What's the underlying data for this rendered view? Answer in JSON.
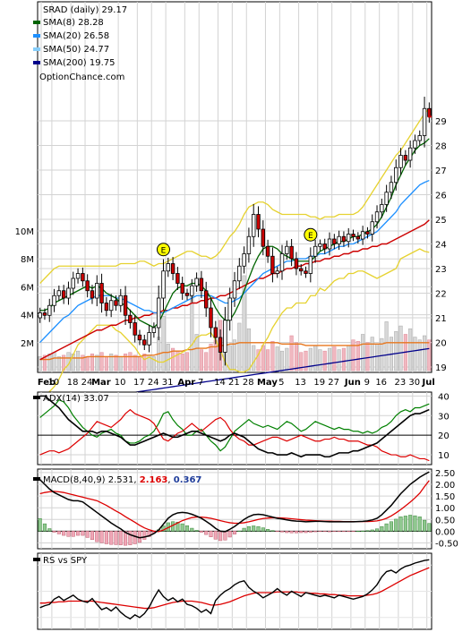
{
  "chart_data": {
    "type": "stock-chart",
    "symbol": "SRAD",
    "period": "daily",
    "title": "SRAD (daily) 29.17",
    "watermark": "OptionChance.com",
    "date_labels": [
      "Feb",
      "10",
      "18",
      "24",
      "Mar",
      "10",
      "17",
      "24",
      "31",
      "Apr",
      "7",
      "14",
      "21",
      "28",
      "May",
      "5",
      "13",
      "19",
      "27",
      "Jun",
      "9",
      "16",
      "23",
      "30",
      "Jul"
    ],
    "price_axis": {
      "min": 18,
      "max": 30,
      "ticks": [
        19,
        20,
        21,
        22,
        23,
        24,
        25,
        26,
        27,
        28,
        29
      ]
    },
    "volume_axis": {
      "min": 0,
      "max": 11,
      "unit": "M",
      "tick_labels": [
        "2M",
        "4M",
        "6M",
        "8M",
        "10M"
      ],
      "ticks": [
        2,
        4,
        6,
        8,
        10
      ]
    },
    "legend": [
      {
        "label": "SMA(8)",
        "value": "28.28",
        "color": "#006400"
      },
      {
        "label": "SMA(20)",
        "value": "26.58",
        "color": "#1e90ff"
      },
      {
        "label": "SMA(50)",
        "value": "24.77",
        "color": "#87cefa"
      },
      {
        "label": "SMA(200)",
        "value": "19.75",
        "color": "#00008b"
      }
    ],
    "earnings_markers": [
      {
        "label": "E",
        "index": 26
      },
      {
        "label": "E",
        "index": 57
      }
    ],
    "close": [
      21.2,
      21.1,
      21.5,
      21.9,
      22.1,
      21.8,
      22.2,
      22.6,
      22.8,
      22.5,
      22.1,
      21.8,
      22.4,
      21.6,
      21.3,
      21.7,
      21.5,
      21.9,
      21.1,
      20.8,
      20.3,
      20.1,
      19.9,
      20.4,
      20.6,
      21.8,
      22.9,
      23.2,
      22.8,
      22.4,
      22.0,
      21.9,
      22.3,
      22.6,
      22.1,
      21.4,
      20.6,
      20.2,
      19.6,
      20.9,
      21.8,
      22.5,
      23.1,
      23.6,
      24.3,
      25.2,
      24.6,
      23.9,
      23.5,
      22.8,
      22.9,
      23.6,
      23.9,
      23.4,
      23.0,
      22.9,
      22.8,
      23.5,
      23.9,
      24.0,
      23.8,
      24.2,
      24.0,
      24.3,
      24.1,
      24.4,
      24.3,
      24.2,
      24.5,
      24.4,
      24.9,
      25.3,
      25.6,
      26.1,
      26.5,
      27.1,
      27.6,
      27.4,
      27.9,
      28.2,
      28.4,
      29.5,
      29.17
    ],
    "sma8": [
      21.3,
      21.3,
      21.4,
      21.6,
      21.7,
      21.8,
      21.9,
      22.0,
      22.1,
      22.2,
      22.3,
      22.2,
      22.3,
      22.2,
      22.0,
      21.9,
      21.8,
      21.6,
      21.5,
      21.3,
      21.1,
      20.9,
      20.8,
      20.7,
      20.6,
      20.8,
      21.2,
      21.6,
      22.0,
      22.2,
      22.3,
      22.3,
      22.4,
      22.4,
      22.3,
      22.1,
      21.8,
      21.4,
      21.1,
      20.9,
      20.9,
      21.2,
      21.6,
      22.1,
      22.6,
      23.1,
      23.5,
      23.8,
      23.9,
      23.9,
      23.8,
      23.6,
      23.5,
      23.4,
      23.3,
      23.3,
      23.3,
      23.3,
      23.5,
      23.7,
      23.8,
      23.9,
      24.0,
      24.1,
      24.1,
      24.2,
      24.3,
      24.3,
      24.4,
      24.5,
      24.6,
      24.8,
      25.1,
      25.5,
      25.9,
      26.4,
      26.8,
      27.2,
      27.5,
      27.8,
      28.0,
      28.1,
      28.28
    ],
    "sma20": [
      20.0,
      20.2,
      20.4,
      20.6,
      20.8,
      21.0,
      21.1,
      21.3,
      21.5,
      21.6,
      21.7,
      21.8,
      21.9,
      21.9,
      21.9,
      21.9,
      21.8,
      21.8,
      21.7,
      21.6,
      21.5,
      21.4,
      21.3,
      21.3,
      21.2,
      21.2,
      21.2,
      21.3,
      21.4,
      21.5,
      21.6,
      21.7,
      21.8,
      21.9,
      21.9,
      21.9,
      21.9,
      21.8,
      21.7,
      21.6,
      21.6,
      21.7,
      21.8,
      22.0,
      22.2,
      22.4,
      22.6,
      22.8,
      22.9,
      23.0,
      23.1,
      23.2,
      23.3,
      23.3,
      23.4,
      23.4,
      23.4,
      23.5,
      23.5,
      23.6,
      23.6,
      23.7,
      23.8,
      23.9,
      23.9,
      24.0,
      24.0,
      24.1,
      24.2,
      24.3,
      24.4,
      24.5,
      24.7,
      24.9,
      25.1,
      25.3,
      25.6,
      25.8,
      26.0,
      26.2,
      26.4,
      26.5,
      26.58
    ],
    "sma50": [
      19.1,
      19.2,
      19.3,
      19.4,
      19.5,
      19.6,
      19.7,
      19.8,
      19.9,
      20.0,
      20.1,
      20.2,
      20.3,
      20.3,
      20.4,
      20.5,
      20.5,
      20.6,
      20.7,
      20.7,
      20.8,
      20.8,
      20.9,
      20.9,
      21.0,
      21.0,
      21.1,
      21.1,
      21.2,
      21.2,
      21.3,
      21.3,
      21.4,
      21.4,
      21.5,
      21.5,
      21.6,
      21.6,
      21.7,
      21.7,
      21.8,
      21.9,
      22.0,
      22.1,
      22.2,
      22.3,
      22.4,
      22.4,
      22.5,
      22.6,
      22.6,
      22.7,
      22.8,
      22.8,
      22.9,
      22.9,
      23.0,
      23.0,
      23.1,
      23.1,
      23.2,
      23.2,
      23.3,
      23.3,
      23.4,
      23.4,
      23.5,
      23.5,
      23.6,
      23.6,
      23.7,
      23.7,
      23.8,
      23.8,
      23.9,
      24.0,
      24.1,
      24.2,
      24.3,
      24.4,
      24.5,
      24.6,
      24.77
    ],
    "bb_upper": [
      22.4,
      22.6,
      22.8,
      23.0,
      23.1,
      23.1,
      23.1,
      23.1,
      23.1,
      23.1,
      23.1,
      23.1,
      23.1,
      23.1,
      23.1,
      23.1,
      23.1,
      23.2,
      23.2,
      23.2,
      23.2,
      23.3,
      23.3,
      23.2,
      23.1,
      23.2,
      23.2,
      23.3,
      23.4,
      23.5,
      23.6,
      23.7,
      23.7,
      23.6,
      23.5,
      23.5,
      23.4,
      23.5,
      23.7,
      24.0,
      24.3,
      24.5,
      24.8,
      25.2,
      25.5,
      25.6,
      25.7,
      25.7,
      25.6,
      25.4,
      25.3,
      25.2,
      25.2,
      25.2,
      25.2,
      25.2,
      25.2,
      25.1,
      25.1,
      25.0,
      25.1,
      25.1,
      25.1,
      25.2,
      25.2,
      25.2,
      25.2,
      25.3,
      25.5,
      25.8,
      26.1,
      26.4,
      26.7,
      27.0,
      27.3,
      27.6,
      27.8,
      28.1,
      28.4,
      28.7,
      29.0,
      29.3,
      29.5
    ],
    "bb_lower": [
      17.6,
      17.8,
      18.0,
      18.2,
      18.5,
      18.9,
      19.1,
      19.5,
      19.9,
      20.1,
      20.3,
      20.5,
      20.7,
      20.7,
      20.7,
      20.7,
      20.5,
      20.4,
      20.2,
      20.0,
      19.8,
      19.5,
      19.3,
      19.4,
      19.3,
      19.2,
      19.2,
      19.3,
      19.4,
      19.5,
      19.6,
      19.7,
      19.9,
      20.2,
      20.3,
      20.3,
      20.4,
      20.1,
      19.7,
      19.2,
      18.9,
      18.9,
      18.8,
      18.8,
      18.9,
      19.2,
      19.5,
      19.9,
      20.2,
      20.6,
      20.9,
      21.2,
      21.4,
      21.4,
      21.6,
      21.6,
      21.6,
      21.9,
      21.9,
      22.2,
      22.1,
      22.3,
      22.5,
      22.6,
      22.6,
      22.8,
      22.8,
      22.9,
      22.9,
      22.8,
      22.7,
      22.6,
      22.7,
      22.8,
      22.9,
      23.0,
      23.4,
      23.5,
      23.6,
      23.7,
      23.8,
      23.7,
      23.66
    ],
    "sma200_start": 17.4,
    "sma200_end": 19.75,
    "volume": [
      1.0,
      1.1,
      1.2,
      1.3,
      1.0,
      1.1,
      1.3,
      1.2,
      1.4,
      1.1,
      1.0,
      1.2,
      1.1,
      1.3,
      1.0,
      1.2,
      1.1,
      1.0,
      1.2,
      1.3,
      1.1,
      1.0,
      1.2,
      1.1,
      1.0,
      2.4,
      3.9,
      1.9,
      1.6,
      1.4,
      1.2,
      1.3,
      5.8,
      2.6,
      1.5,
      1.3,
      1.9,
      2.2,
      3.6,
      3.1,
      1.8,
      2.2,
      3.4,
      6.8,
      3.0,
      1.8,
      1.5,
      1.8,
      1.5,
      2.1,
      1.7,
      1.4,
      1.6,
      2.5,
      2.0,
      1.3,
      1.4,
      1.6,
      1.8,
      1.5,
      1.4,
      1.6,
      1.7,
      1.5,
      1.6,
      1.8,
      2.2,
      2.1,
      2.6,
      2.0,
      2.4,
      1.9,
      2.3,
      3.5,
      2.4,
      2.8,
      3.2,
      2.6,
      3.0,
      2.4,
      2.2,
      2.5,
      2.2
    ],
    "volume_ma": [
      0.8,
      0.8,
      0.8,
      0.9,
      0.9,
      0.9,
      0.9,
      0.9,
      0.9,
      0.9,
      1.0,
      1.0,
      1.0,
      1.0,
      1.0,
      1.0,
      1.0,
      1.0,
      1.0,
      1.0,
      1.0,
      1.0,
      1.1,
      1.1,
      1.1,
      1.2,
      1.3,
      1.3,
      1.4,
      1.4,
      1.4,
      1.5,
      1.5,
      1.6,
      1.6,
      1.6,
      1.7,
      1.7,
      1.8,
      1.8,
      1.9,
      1.9,
      2.0,
      2.0,
      2.0,
      2.0,
      2.0,
      2.0,
      2.0,
      2.0,
      2.0,
      1.9,
      1.9,
      1.9,
      1.9,
      1.9,
      1.8,
      1.8,
      1.8,
      1.8,
      1.8,
      1.8,
      1.8,
      1.8,
      1.8,
      1.8,
      1.8,
      1.8,
      1.9,
      1.9,
      1.9,
      1.9,
      1.9,
      2.0,
      2.0,
      2.0,
      2.0,
      2.0,
      2.0,
      2.0,
      2.0,
      2.0,
      2.0
    ],
    "adx": {
      "label": "ADX(14) 33.07",
      "ticks": [
        10,
        20,
        30,
        40
      ],
      "range": [
        5,
        42
      ],
      "adx": [
        40,
        40,
        38,
        36,
        34,
        31,
        28,
        26,
        24,
        22,
        22,
        22,
        21,
        22,
        22,
        21,
        20,
        19,
        17,
        15,
        15,
        16,
        17,
        18,
        19,
        20,
        21,
        20,
        19,
        19,
        20,
        21,
        22,
        22,
        21,
        20,
        19,
        18,
        17,
        18,
        20,
        21,
        20,
        19,
        17,
        15,
        13,
        12,
        11,
        11,
        10,
        10,
        10,
        11,
        10,
        9,
        10,
        10,
        10,
        10,
        9,
        9,
        10,
        11,
        11,
        11,
        12,
        12,
        13,
        14,
        15,
        16,
        18,
        20,
        22,
        24,
        26,
        28,
        30,
        31,
        31,
        32,
        33.07
      ],
      "plus_di": [
        29,
        31,
        33,
        35,
        38,
        37,
        34,
        30,
        27,
        24,
        22,
        20,
        19,
        21,
        22,
        23,
        21,
        20,
        17,
        16,
        16,
        17,
        19,
        20,
        22,
        26,
        31,
        32,
        28,
        25,
        23,
        20,
        20,
        22,
        23,
        20,
        17,
        15,
        12,
        14,
        18,
        22,
        24,
        26,
        28,
        26,
        25,
        24,
        25,
        24,
        23,
        25,
        27,
        26,
        24,
        22,
        23,
        25,
        27,
        26,
        25,
        24,
        23,
        24,
        23,
        23,
        22,
        22,
        21,
        22,
        21,
        22,
        24,
        25,
        27,
        30,
        32,
        33,
        32,
        34,
        34,
        35,
        36
      ],
      "minus_di": [
        10,
        11,
        12,
        12,
        11,
        12,
        13,
        15,
        17,
        19,
        21,
        24,
        27,
        26,
        25,
        24,
        26,
        28,
        31,
        33,
        31,
        30,
        29,
        28,
        26,
        22,
        18,
        17,
        19,
        21,
        22,
        24,
        26,
        24,
        22,
        24,
        26,
        28,
        29,
        27,
        23,
        20,
        18,
        17,
        15,
        15,
        16,
        17,
        18,
        19,
        19,
        18,
        17,
        18,
        19,
        20,
        19,
        18,
        17,
        17,
        18,
        18,
        19,
        18,
        18,
        17,
        17,
        17,
        16,
        15,
        15,
        14,
        12,
        11,
        10,
        10,
        9,
        9,
        10,
        9,
        8,
        8,
        7
      ]
    },
    "macd": {
      "label": "MACD(8,40,9)",
      "macd_value": "2.531",
      "signal_value": "2.163",
      "hist_value": "0.367",
      "ticks": [
        -0.5,
        0.0,
        0.5,
        1.0,
        1.5,
        2.0,
        2.5
      ],
      "tick_labels": [
        "-0.50",
        "0.00",
        "0.50",
        "1.00",
        "1.50",
        "2.00",
        "2.50"
      ],
      "range": [
        -0.75,
        2.65
      ],
      "macd": [
        2.2,
        2.0,
        1.8,
        1.65,
        1.55,
        1.45,
        1.35,
        1.3,
        1.3,
        1.25,
        1.1,
        0.95,
        0.8,
        0.65,
        0.5,
        0.35,
        0.22,
        0.1,
        -0.05,
        -0.15,
        -0.22,
        -0.28,
        -0.25,
        -0.2,
        -0.1,
        0.05,
        0.3,
        0.55,
        0.7,
        0.78,
        0.8,
        0.78,
        0.72,
        0.64,
        0.55,
        0.42,
        0.28,
        0.12,
        0.0,
        -0.02,
        0.08,
        0.2,
        0.35,
        0.5,
        0.62,
        0.7,
        0.72,
        0.7,
        0.65,
        0.6,
        0.55,
        0.52,
        0.48,
        0.45,
        0.43,
        0.42,
        0.4,
        0.41,
        0.42,
        0.42,
        0.41,
        0.4,
        0.4,
        0.4,
        0.4,
        0.4,
        0.4,
        0.41,
        0.42,
        0.44,
        0.48,
        0.55,
        0.7,
        0.9,
        1.1,
        1.35,
        1.6,
        1.8,
        2.0,
        2.15,
        2.3,
        2.42,
        2.531
      ],
      "signal": [
        1.6,
        1.65,
        1.68,
        1.7,
        1.68,
        1.65,
        1.6,
        1.55,
        1.5,
        1.45,
        1.4,
        1.35,
        1.3,
        1.2,
        1.1,
        0.98,
        0.86,
        0.75,
        0.62,
        0.5,
        0.38,
        0.25,
        0.14,
        0.06,
        0.0,
        -0.02,
        0.05,
        0.15,
        0.25,
        0.35,
        0.45,
        0.52,
        0.58,
        0.6,
        0.6,
        0.58,
        0.55,
        0.5,
        0.45,
        0.4,
        0.36,
        0.34,
        0.34,
        0.36,
        0.4,
        0.45,
        0.5,
        0.54,
        0.56,
        0.57,
        0.57,
        0.56,
        0.55,
        0.53,
        0.51,
        0.49,
        0.47,
        0.46,
        0.45,
        0.44,
        0.43,
        0.43,
        0.42,
        0.42,
        0.41,
        0.41,
        0.41,
        0.41,
        0.41,
        0.41,
        0.42,
        0.44,
        0.48,
        0.55,
        0.65,
        0.78,
        0.92,
        1.08,
        1.24,
        1.42,
        1.62,
        1.9,
        2.163
      ]
    },
    "rs": {
      "label": "RS vs SPY",
      "range": [
        0,
        1
      ],
      "line": [
        0.25,
        0.28,
        0.3,
        0.38,
        0.42,
        0.36,
        0.4,
        0.44,
        0.38,
        0.35,
        0.33,
        0.39,
        0.3,
        0.22,
        0.25,
        0.2,
        0.26,
        0.18,
        0.12,
        0.08,
        0.14,
        0.1,
        0.16,
        0.26,
        0.4,
        0.52,
        0.42,
        0.36,
        0.4,
        0.34,
        0.38,
        0.3,
        0.28,
        0.24,
        0.18,
        0.22,
        0.16,
        0.36,
        0.44,
        0.5,
        0.54,
        0.6,
        0.64,
        0.66,
        0.56,
        0.5,
        0.46,
        0.4,
        0.44,
        0.48,
        0.54,
        0.48,
        0.44,
        0.5,
        0.46,
        0.42,
        0.48,
        0.46,
        0.44,
        0.42,
        0.44,
        0.42,
        0.4,
        0.44,
        0.42,
        0.4,
        0.38,
        0.4,
        0.42,
        0.46,
        0.52,
        0.6,
        0.72,
        0.8,
        0.82,
        0.78,
        0.84,
        0.88,
        0.9,
        0.93,
        0.95,
        0.97,
        0.98
      ],
      "ma": [
        0.32,
        0.32,
        0.33,
        0.33,
        0.34,
        0.34,
        0.35,
        0.35,
        0.35,
        0.35,
        0.35,
        0.35,
        0.34,
        0.33,
        0.32,
        0.31,
        0.3,
        0.29,
        0.28,
        0.27,
        0.26,
        0.25,
        0.24,
        0.24,
        0.25,
        0.27,
        0.29,
        0.31,
        0.33,
        0.34,
        0.35,
        0.35,
        0.35,
        0.34,
        0.33,
        0.31,
        0.29,
        0.29,
        0.3,
        0.32,
        0.34,
        0.37,
        0.4,
        0.43,
        0.45,
        0.47,
        0.48,
        0.48,
        0.48,
        0.48,
        0.49,
        0.49,
        0.49,
        0.49,
        0.49,
        0.48,
        0.48,
        0.47,
        0.47,
        0.46,
        0.46,
        0.45,
        0.45,
        0.44,
        0.44,
        0.43,
        0.43,
        0.43,
        0.43,
        0.44,
        0.45,
        0.47,
        0.5,
        0.54,
        0.58,
        0.62,
        0.66,
        0.7,
        0.74,
        0.77,
        0.8,
        0.83,
        0.86
      ]
    }
  }
}
